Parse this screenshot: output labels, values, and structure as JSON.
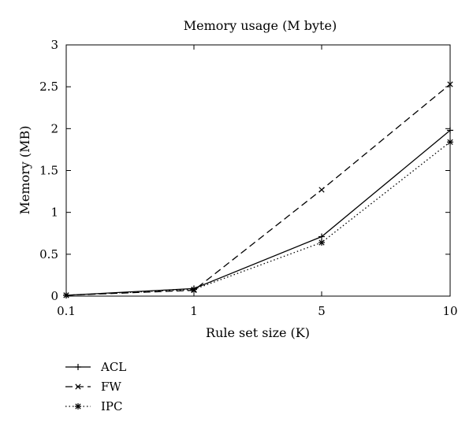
{
  "chart_data": {
    "type": "line",
    "title": "Memory usage (M byte)",
    "xlabel": "Rule set size (K)",
    "ylabel": "Memory (MB)",
    "categories": [
      "0.1",
      "1",
      "5",
      "10"
    ],
    "ylim": [
      0,
      3
    ],
    "yticks": [
      "0",
      "0.5",
      "1",
      "1.5",
      "2",
      "2.5",
      "3"
    ],
    "grid": false,
    "legend_position": "bottom-left",
    "series": [
      {
        "name": "ACL",
        "values": [
          0.01,
          0.09,
          0.71,
          1.98
        ],
        "style": "solid",
        "marker": "+"
      },
      {
        "name": "FW",
        "values": [
          0.01,
          0.07,
          1.27,
          2.53
        ],
        "style": "dashed",
        "marker": "x"
      },
      {
        "name": "IPC",
        "values": [
          0.01,
          0.08,
          0.64,
          1.84
        ],
        "style": "dotted",
        "marker": "*"
      }
    ]
  }
}
